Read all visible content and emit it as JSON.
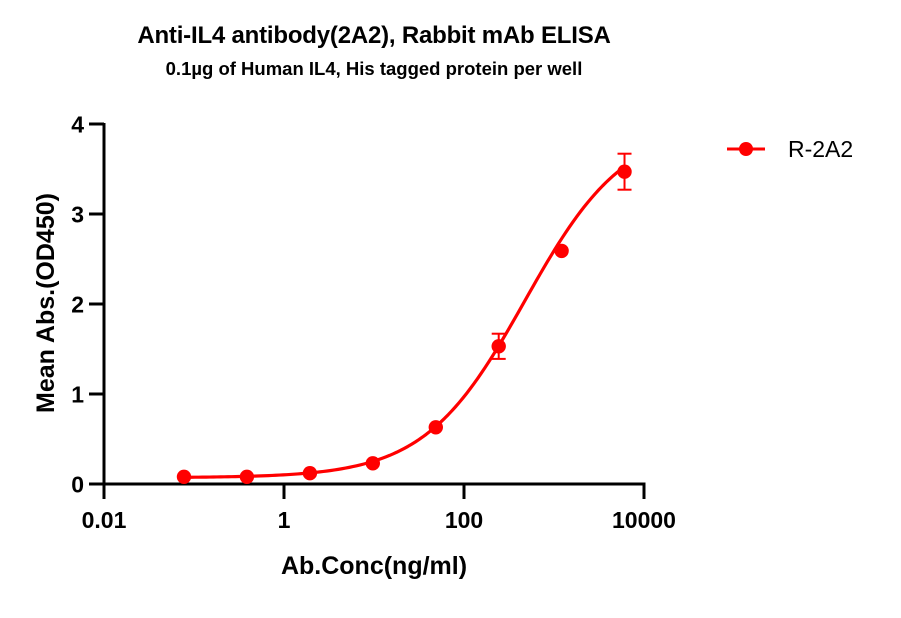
{
  "chart_data": {
    "type": "scatter",
    "title": "Anti-IL4 antibody(2A2), Rabbit mAb ELISA",
    "subtitle": "0.1µg of Human IL4, His tagged protein per well",
    "xlabel": "Ab.Conc(ng/ml)",
    "ylabel": "Mean Abs.(OD450)",
    "xscale": "log10",
    "xlim": [
      0.01,
      10000
    ],
    "ylim": [
      0,
      4
    ],
    "xticks": [
      0.01,
      1,
      100,
      10000
    ],
    "xtick_labels": [
      "0.01",
      "1",
      "100",
      "10000"
    ],
    "yticks": [
      0,
      1,
      2,
      3,
      4
    ],
    "ytick_labels": [
      "0",
      "1",
      "2",
      "3",
      "4"
    ],
    "grid": false,
    "legend_position": "right-top",
    "series": [
      {
        "name": "R-2A2",
        "color": "#FF0000",
        "marker": "circle",
        "x": [
          0.0774,
          0.387,
          1.94,
          9.7,
          48.6,
          243,
          1215,
          6075
        ],
        "y": [
          0.08,
          0.08,
          0.12,
          0.23,
          0.63,
          1.53,
          2.59,
          3.47
        ],
        "error": [
          0,
          0,
          0,
          0,
          0,
          0.14,
          0,
          0.2
        ],
        "fit": {
          "model": "4PL",
          "bottom": 0.07,
          "top": 4.0,
          "ec50": 474,
          "hill": 0.78
        }
      }
    ]
  }
}
